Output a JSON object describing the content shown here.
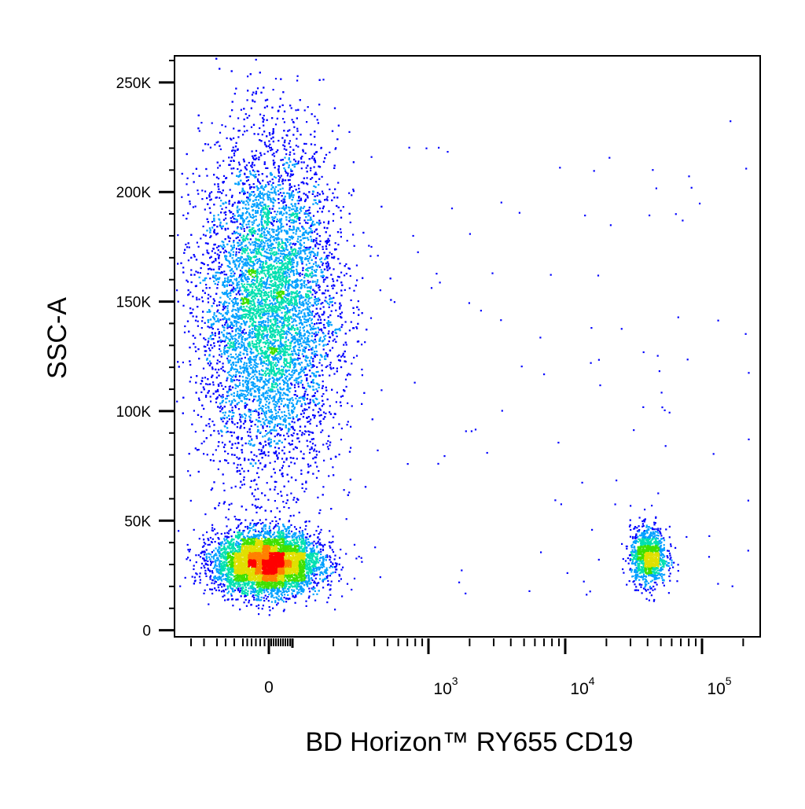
{
  "chart_data": {
    "type": "scatter",
    "style": "density-colored dot plot (blue low → green → yellow → red high density)",
    "title": "",
    "xlabel": "BD Horizon™ RY655 CD19",
    "ylabel": "SSC-A",
    "x_scale": "biexponential",
    "x_range": [
      -200,
      200000
    ],
    "x_ticks": [
      {
        "value": 0,
        "label": "0"
      },
      {
        "value": 1000,
        "base": "10",
        "exp": "3"
      },
      {
        "value": 10000,
        "base": "10",
        "exp": "4"
      },
      {
        "value": 100000,
        "base": "10",
        "exp": "5"
      }
    ],
    "y_scale": "linear",
    "y_range": [
      -3000,
      262144
    ],
    "y_ticks": [
      {
        "value": 0,
        "label": "0"
      },
      {
        "value": 50000,
        "label": "50K"
      },
      {
        "value": 100000,
        "label": "100K"
      },
      {
        "value": 150000,
        "label": "150K"
      },
      {
        "value": 200000,
        "label": "200K"
      },
      {
        "value": 250000,
        "label": "250K"
      }
    ],
    "grid": false,
    "legend": "none",
    "density_colors": [
      "#0000ff",
      "#00a0ff",
      "#00e0b0",
      "#40e000",
      "#e0e000",
      "#ff8000",
      "#ff0000"
    ],
    "populations": [
      {
        "x_center": 0,
        "x_spread_decades": 0.45,
        "y_center": 148000,
        "y_sd": 38000,
        "count": 9000
      },
      {
        "x_center": -5,
        "x_spread_decades": 0.35,
        "y_center": 31000,
        "y_sd": 7000,
        "count": 5500
      },
      {
        "x_center": 40000,
        "x_spread_decades": 0.12,
        "y_center": 34000,
        "y_sd": 6500,
        "count": 1100
      }
    ]
  }
}
